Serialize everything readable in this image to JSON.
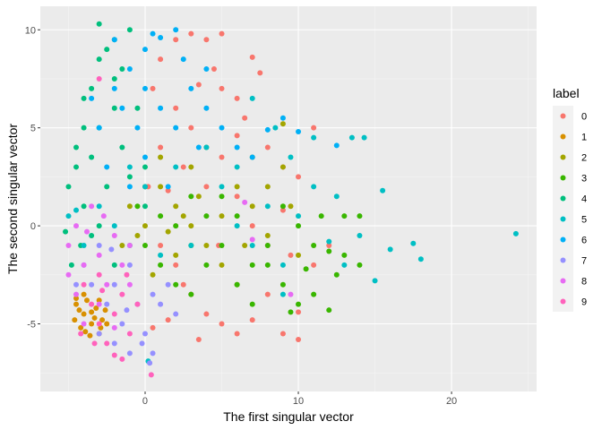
{
  "chart_data": {
    "type": "scatter",
    "xlabel": "The first singular vector",
    "ylabel": "The second singular vector",
    "xlim": [
      -6.84,
      25.55
    ],
    "ylim": [
      -8.45,
      11.2
    ],
    "xticks": [
      0,
      10,
      20
    ],
    "yticks": [
      -5,
      0,
      5,
      10
    ],
    "grid": true,
    "legend": {
      "title": "label",
      "position": "right"
    },
    "series": [
      {
        "name": "0",
        "color": "#F8766D",
        "points": [
          [
            0.5,
            7
          ],
          [
            1,
            8.5
          ],
          [
            2,
            9.5
          ],
          [
            3,
            9.8
          ],
          [
            4,
            9.5
          ],
          [
            4.5,
            8
          ],
          [
            5,
            7
          ],
          [
            6,
            6.5
          ],
          [
            6.5,
            5.5
          ],
          [
            7.5,
            7.8
          ],
          [
            8,
            4
          ],
          [
            9,
            3
          ],
          [
            10,
            2.5
          ],
          [
            11,
            5
          ],
          [
            3,
            5
          ],
          [
            2,
            6
          ],
          [
            1,
            4
          ],
          [
            2.5,
            3
          ],
          [
            4,
            2
          ],
          [
            5,
            3.5
          ],
          [
            6,
            1.5
          ],
          [
            7,
            0
          ],
          [
            8,
            -1
          ],
          [
            9.5,
            -1.5
          ],
          [
            11,
            -2
          ],
          [
            1,
            -1
          ],
          [
            2,
            -2
          ],
          [
            3,
            -3.5
          ],
          [
            4,
            -4.5
          ],
          [
            5,
            -5
          ],
          [
            6,
            -5.5
          ],
          [
            7,
            -4.8
          ],
          [
            8,
            -3.5
          ],
          [
            9,
            -5.5
          ],
          [
            10,
            -5.8
          ],
          [
            1.5,
            -4.8
          ],
          [
            0.5,
            -5.2
          ],
          [
            3.5,
            -5.8
          ],
          [
            12,
            -1
          ],
          [
            5,
            9.8
          ],
          [
            7,
            8.6
          ],
          [
            6,
            4.6
          ],
          [
            9,
            0.8
          ],
          [
            10,
            -4.4
          ],
          [
            0.2,
            2
          ],
          [
            3.5,
            7.2
          ],
          [
            1.5,
            1.8
          ],
          [
            4.8,
            -1
          ],
          [
            2.5,
            -3
          ]
        ]
      },
      {
        "name": "1",
        "color": "#D89000",
        "points": [
          [
            -4.5,
            -4
          ],
          [
            -4,
            -4.5
          ],
          [
            -3.5,
            -5
          ],
          [
            -3,
            -5.5
          ],
          [
            -4.2,
            -5.2
          ],
          [
            -3.8,
            -3.8
          ],
          [
            -3.2,
            -4.2
          ],
          [
            -2.8,
            -4.8
          ],
          [
            -4.6,
            -4.8
          ],
          [
            -3.6,
            -5.6
          ],
          [
            -2.5,
            -5
          ],
          [
            -4,
            -3.5
          ],
          [
            -3,
            -3.8
          ],
          [
            -2.6,
            -4.3
          ],
          [
            -4.3,
            -4.3
          ],
          [
            -3.3,
            -4.7
          ],
          [
            -3.9,
            -5.4
          ],
          [
            -2.9,
            -5.2
          ],
          [
            -4.5,
            -3.7
          ],
          [
            -3.5,
            -4.4
          ]
        ]
      },
      {
        "name": "2",
        "color": "#A3A500",
        "points": [
          [
            -1,
            1
          ],
          [
            0,
            0
          ],
          [
            1,
            2
          ],
          [
            2,
            1
          ],
          [
            3,
            0
          ],
          [
            4,
            -1
          ],
          [
            5,
            0.5
          ],
          [
            6,
            2
          ],
          [
            7,
            1
          ],
          [
            8,
            -0.5
          ],
          [
            9,
            3
          ],
          [
            9.5,
            1
          ],
          [
            3,
            3
          ],
          [
            2,
            -1.5
          ],
          [
            0.5,
            -2.5
          ],
          [
            4,
            4
          ],
          [
            1,
            3.5
          ],
          [
            -1.5,
            -1
          ],
          [
            5,
            -2
          ],
          [
            6.5,
            -1
          ],
          [
            2.5,
            0.5
          ],
          [
            8,
            2
          ],
          [
            10,
            -1.5
          ],
          [
            0,
            2
          ],
          [
            3.5,
            1.5
          ],
          [
            -0.5,
            -0.5
          ],
          [
            7,
            3.5
          ],
          [
            9,
            5.2
          ],
          [
            6,
            -3
          ],
          [
            1.5,
            -0.3
          ]
        ]
      },
      {
        "name": "3",
        "color": "#39B600",
        "points": [
          [
            0,
            -1
          ],
          [
            1,
            -2
          ],
          [
            2,
            0
          ],
          [
            3,
            -1
          ],
          [
            4,
            -2
          ],
          [
            5,
            -1
          ],
          [
            6,
            -3
          ],
          [
            7,
            -2
          ],
          [
            8,
            -1
          ],
          [
            9,
            -3
          ],
          [
            10,
            -4
          ],
          [
            11,
            -3.5
          ],
          [
            12,
            -4.3
          ],
          [
            12.5,
            -2.5
          ],
          [
            13,
            -1.5
          ],
          [
            14,
            -2
          ],
          [
            11,
            -1
          ],
          [
            10,
            0
          ],
          [
            9,
            1
          ],
          [
            6,
            0.5
          ],
          [
            4,
            0.5
          ],
          [
            2,
            -3
          ],
          [
            1,
            0.5
          ],
          [
            3,
            -3.5
          ],
          [
            7,
            -4
          ],
          [
            9.5,
            -4.4
          ],
          [
            11.5,
            0.5
          ],
          [
            13,
            0.5
          ],
          [
            5,
            1.5
          ],
          [
            8,
            -2
          ],
          [
            12,
            -1.3
          ],
          [
            10.5,
            -2.2
          ],
          [
            -0.5,
            1
          ],
          [
            3,
            1.5
          ],
          [
            14,
            0.5
          ]
        ]
      },
      {
        "name": "4",
        "color": "#00BF7D",
        "points": [
          [
            -5,
            2
          ],
          [
            -5.2,
            -0.3
          ],
          [
            -4.8,
            -2
          ],
          [
            -4.5,
            3
          ],
          [
            -4,
            5
          ],
          [
            -3.5,
            7
          ],
          [
            -3,
            8.5
          ],
          [
            -2.5,
            9
          ],
          [
            -3,
            10.3
          ],
          [
            -2,
            9.5
          ],
          [
            -1,
            10
          ],
          [
            -4,
            1
          ],
          [
            -3.5,
            3.5
          ],
          [
            -2,
            6
          ],
          [
            -1.5,
            4
          ],
          [
            -3,
            0
          ],
          [
            -2.5,
            2
          ],
          [
            -1,
            2.5
          ],
          [
            -4.2,
            -1
          ],
          [
            -2,
            -2
          ],
          [
            -1,
            -1
          ],
          [
            0,
            1
          ],
          [
            -4,
            6.5
          ],
          [
            -3,
            5
          ],
          [
            -2,
            7.5
          ],
          [
            -0.5,
            6
          ],
          [
            -4.5,
            4
          ],
          [
            -3.5,
            -0.5
          ],
          [
            -1.5,
            8
          ],
          [
            0,
            3
          ]
        ]
      },
      {
        "name": "5",
        "color": "#00BFC4",
        "points": [
          [
            -5,
            0.5
          ],
          [
            -4.5,
            0.8
          ],
          [
            -4,
            -1
          ],
          [
            -3,
            1
          ],
          [
            -2,
            0
          ],
          [
            0,
            2
          ],
          [
            2,
            3
          ],
          [
            4,
            4
          ],
          [
            5,
            2
          ],
          [
            6,
            0
          ],
          [
            7,
            -1
          ],
          [
            8,
            1
          ],
          [
            9,
            -2
          ],
          [
            10,
            0.5
          ],
          [
            11,
            2
          ],
          [
            12,
            -0.8
          ],
          [
            13,
            -2
          ],
          [
            14,
            -0.5
          ],
          [
            15,
            -2.8
          ],
          [
            15.5,
            1.8
          ],
          [
            16,
            -1.2
          ],
          [
            17.5,
            -0.9
          ],
          [
            18,
            -1.7
          ],
          [
            24.2,
            -0.4
          ],
          [
            12.5,
            1.5
          ],
          [
            11,
            4.5
          ],
          [
            8.5,
            5
          ],
          [
            7,
            6.5
          ],
          [
            3,
            -1
          ],
          [
            1,
            -1.5
          ],
          [
            0.2,
            -6.9
          ],
          [
            -1,
            3
          ],
          [
            6,
            3
          ],
          [
            9,
            -3.5
          ],
          [
            13.5,
            4.5
          ],
          [
            14.3,
            4.5
          ],
          [
            9.5,
            3.5
          ]
        ]
      },
      {
        "name": "6",
        "color": "#00B0F6",
        "points": [
          [
            -3,
            5
          ],
          [
            -2,
            7
          ],
          [
            -1,
            8
          ],
          [
            0,
            9
          ],
          [
            0.5,
            9.8
          ],
          [
            1,
            9.6
          ],
          [
            2,
            10
          ],
          [
            -1.5,
            6
          ],
          [
            -0.5,
            5
          ],
          [
            0,
            7
          ],
          [
            1,
            6
          ],
          [
            2,
            5
          ],
          [
            3,
            7
          ],
          [
            3.5,
            4
          ],
          [
            4,
            6
          ],
          [
            5,
            5
          ],
          [
            6,
            4
          ],
          [
            7,
            3.5
          ],
          [
            8,
            4.9
          ],
          [
            9,
            5.5
          ],
          [
            10,
            4.8
          ],
          [
            12.5,
            4.1
          ],
          [
            -2.5,
            3
          ],
          [
            -1,
            2
          ],
          [
            0,
            3.5
          ],
          [
            1.5,
            2
          ],
          [
            -3.5,
            6.5
          ],
          [
            -2,
            9.5
          ],
          [
            4,
            8
          ],
          [
            2.5,
            8.5
          ]
        ]
      },
      {
        "name": "7",
        "color": "#9590FF",
        "points": [
          [
            -4,
            -2
          ],
          [
            -3.5,
            -3
          ],
          [
            -3,
            -1
          ],
          [
            -2.5,
            -4
          ],
          [
            -2,
            -3
          ],
          [
            -1.5,
            -5
          ],
          [
            -1,
            -2
          ],
          [
            -0.5,
            -4
          ],
          [
            0,
            -5.5
          ],
          [
            0.5,
            -6.5
          ],
          [
            0.3,
            -7
          ],
          [
            -0.2,
            -6
          ],
          [
            1,
            -4
          ],
          [
            1.5,
            -3
          ],
          [
            2,
            -4.5
          ],
          [
            -3,
            -5.5
          ],
          [
            -2,
            -6
          ],
          [
            -1,
            -6.5
          ],
          [
            -4.5,
            -3
          ],
          [
            -2.2,
            -1.2
          ],
          [
            0.5,
            -3.5
          ],
          [
            -1.2,
            -4.3
          ]
        ]
      },
      {
        "name": "8",
        "color": "#E76BF3",
        "points": [
          [
            -5,
            -1
          ],
          [
            -4.5,
            0
          ],
          [
            -4,
            -2
          ],
          [
            -3.5,
            1
          ],
          [
            -3,
            -1.5
          ],
          [
            -2.5,
            -3
          ],
          [
            -2,
            -0.5
          ],
          [
            -1.5,
            -2
          ],
          [
            -4.5,
            -3.5
          ],
          [
            -4,
            -5
          ],
          [
            -3,
            -4
          ],
          [
            -2,
            -5.2
          ],
          [
            -1,
            -3
          ],
          [
            -5,
            -2.5
          ],
          [
            -3.8,
            -0.3
          ],
          [
            -2.7,
            0.5
          ],
          [
            7,
            -0.7
          ],
          [
            6.5,
            1.2
          ],
          [
            9.5,
            -3.5
          ],
          [
            -1,
            -1
          ]
        ]
      },
      {
        "name": "9",
        "color": "#FF62BC",
        "points": [
          [
            -4,
            -3
          ],
          [
            -3.5,
            -4
          ],
          [
            -3,
            -5
          ],
          [
            -2.5,
            -6
          ],
          [
            -2,
            -4.5
          ],
          [
            -1.5,
            -3.5
          ],
          [
            -1,
            -5.5
          ],
          [
            -0.5,
            -4
          ],
          [
            -3,
            -2.5
          ],
          [
            -2,
            -6.6
          ],
          [
            -1.5,
            -6.8
          ],
          [
            0.4,
            -7.6
          ],
          [
            -4.2,
            -5.5
          ],
          [
            -2.8,
            -3.3
          ],
          [
            -1.2,
            -2.5
          ],
          [
            -3.3,
            -6
          ],
          [
            -3,
            7.5
          ]
        ]
      }
    ]
  }
}
